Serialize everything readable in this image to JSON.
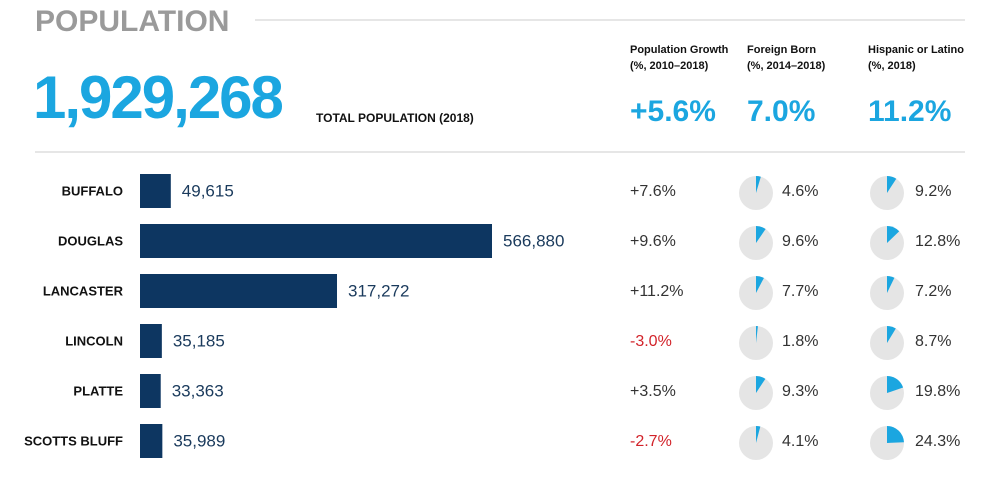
{
  "title": "POPULATION",
  "total": {
    "value": "1,929,268",
    "label": "TOTAL POPULATION (2018)"
  },
  "metrics": [
    {
      "label": "Population Growth",
      "sublabel": "(%, 2010–2018)",
      "value": "+5.6%"
    },
    {
      "label": "Foreign Born",
      "sublabel": "(%, 2014–2018)",
      "value": "7.0%"
    },
    {
      "label": "Hispanic or Latino",
      "sublabel": "(%, 2018)",
      "value": "11.2%"
    }
  ],
  "counties": {
    "names": [
      "BUFFALO",
      "DOUGLAS",
      "LANCASTER",
      "LINCOLN",
      "PLATTE",
      "SCOTTS BLUFF"
    ],
    "population": [
      49615,
      566880,
      317272,
      35185,
      33363,
      35989
    ],
    "population_labels": [
      "49,615",
      "566,880",
      "317,272",
      "35,185",
      "33,363",
      "35,989"
    ],
    "growth": [
      7.6,
      9.6,
      11.2,
      -3.0,
      3.5,
      -2.7
    ],
    "growth_labels": [
      "+7.6%",
      "+9.6%",
      "+11.2%",
      "-3.0%",
      "+3.5%",
      "-2.7%"
    ],
    "foreign_born": [
      4.6,
      9.6,
      7.7,
      1.8,
      9.3,
      4.1
    ],
    "foreign_born_labels": [
      "4.6%",
      "9.6%",
      "7.7%",
      "1.8%",
      "9.3%",
      "4.1%"
    ],
    "hispanic": [
      9.2,
      12.8,
      7.2,
      8.7,
      19.8,
      24.3
    ],
    "hispanic_labels": [
      "9.2%",
      "12.8%",
      "7.2%",
      "8.7%",
      "19.8%",
      "24.3%"
    ]
  },
  "colors": {
    "bar": "#0d3661",
    "pie": "#1ba6e0",
    "pie_bg": "#e5e5e5",
    "negative": "#d2232a"
  }
}
